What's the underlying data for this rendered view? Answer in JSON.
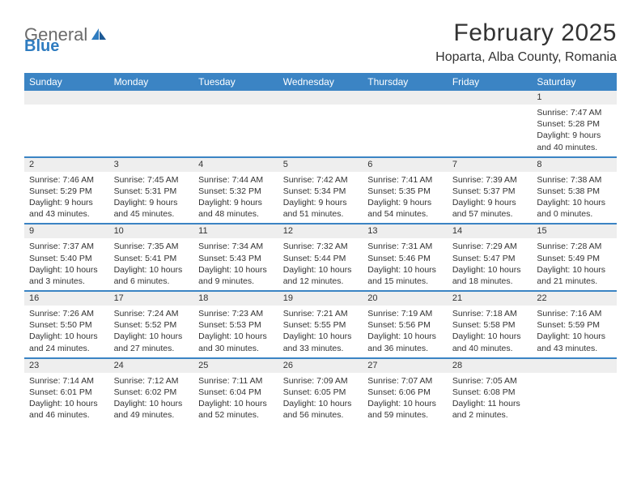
{
  "logo": {
    "text1": "General",
    "text2": "Blue"
  },
  "title": "February 2025",
  "location": "Hoparta, Alba County, Romania",
  "colors": {
    "header_bg": "#3b84c4",
    "header_text": "#ffffff",
    "num_row_bg": "#eeeeee",
    "border": "#3b84c4",
    "logo_gray": "#6b6b6b",
    "logo_blue": "#2f7cc0"
  },
  "day_names": [
    "Sunday",
    "Monday",
    "Tuesday",
    "Wednesday",
    "Thursday",
    "Friday",
    "Saturday"
  ],
  "weeks": [
    [
      {
        "n": "",
        "sr": "",
        "ss": "",
        "dl": ""
      },
      {
        "n": "",
        "sr": "",
        "ss": "",
        "dl": ""
      },
      {
        "n": "",
        "sr": "",
        "ss": "",
        "dl": ""
      },
      {
        "n": "",
        "sr": "",
        "ss": "",
        "dl": ""
      },
      {
        "n": "",
        "sr": "",
        "ss": "",
        "dl": ""
      },
      {
        "n": "",
        "sr": "",
        "ss": "",
        "dl": ""
      },
      {
        "n": "1",
        "sr": "Sunrise: 7:47 AM",
        "ss": "Sunset: 5:28 PM",
        "dl": "Daylight: 9 hours and 40 minutes."
      }
    ],
    [
      {
        "n": "2",
        "sr": "Sunrise: 7:46 AM",
        "ss": "Sunset: 5:29 PM",
        "dl": "Daylight: 9 hours and 43 minutes."
      },
      {
        "n": "3",
        "sr": "Sunrise: 7:45 AM",
        "ss": "Sunset: 5:31 PM",
        "dl": "Daylight: 9 hours and 45 minutes."
      },
      {
        "n": "4",
        "sr": "Sunrise: 7:44 AM",
        "ss": "Sunset: 5:32 PM",
        "dl": "Daylight: 9 hours and 48 minutes."
      },
      {
        "n": "5",
        "sr": "Sunrise: 7:42 AM",
        "ss": "Sunset: 5:34 PM",
        "dl": "Daylight: 9 hours and 51 minutes."
      },
      {
        "n": "6",
        "sr": "Sunrise: 7:41 AM",
        "ss": "Sunset: 5:35 PM",
        "dl": "Daylight: 9 hours and 54 minutes."
      },
      {
        "n": "7",
        "sr": "Sunrise: 7:39 AM",
        "ss": "Sunset: 5:37 PM",
        "dl": "Daylight: 9 hours and 57 minutes."
      },
      {
        "n": "8",
        "sr": "Sunrise: 7:38 AM",
        "ss": "Sunset: 5:38 PM",
        "dl": "Daylight: 10 hours and 0 minutes."
      }
    ],
    [
      {
        "n": "9",
        "sr": "Sunrise: 7:37 AM",
        "ss": "Sunset: 5:40 PM",
        "dl": "Daylight: 10 hours and 3 minutes."
      },
      {
        "n": "10",
        "sr": "Sunrise: 7:35 AM",
        "ss": "Sunset: 5:41 PM",
        "dl": "Daylight: 10 hours and 6 minutes."
      },
      {
        "n": "11",
        "sr": "Sunrise: 7:34 AM",
        "ss": "Sunset: 5:43 PM",
        "dl": "Daylight: 10 hours and 9 minutes."
      },
      {
        "n": "12",
        "sr": "Sunrise: 7:32 AM",
        "ss": "Sunset: 5:44 PM",
        "dl": "Daylight: 10 hours and 12 minutes."
      },
      {
        "n": "13",
        "sr": "Sunrise: 7:31 AM",
        "ss": "Sunset: 5:46 PM",
        "dl": "Daylight: 10 hours and 15 minutes."
      },
      {
        "n": "14",
        "sr": "Sunrise: 7:29 AM",
        "ss": "Sunset: 5:47 PM",
        "dl": "Daylight: 10 hours and 18 minutes."
      },
      {
        "n": "15",
        "sr": "Sunrise: 7:28 AM",
        "ss": "Sunset: 5:49 PM",
        "dl": "Daylight: 10 hours and 21 minutes."
      }
    ],
    [
      {
        "n": "16",
        "sr": "Sunrise: 7:26 AM",
        "ss": "Sunset: 5:50 PM",
        "dl": "Daylight: 10 hours and 24 minutes."
      },
      {
        "n": "17",
        "sr": "Sunrise: 7:24 AM",
        "ss": "Sunset: 5:52 PM",
        "dl": "Daylight: 10 hours and 27 minutes."
      },
      {
        "n": "18",
        "sr": "Sunrise: 7:23 AM",
        "ss": "Sunset: 5:53 PM",
        "dl": "Daylight: 10 hours and 30 minutes."
      },
      {
        "n": "19",
        "sr": "Sunrise: 7:21 AM",
        "ss": "Sunset: 5:55 PM",
        "dl": "Daylight: 10 hours and 33 minutes."
      },
      {
        "n": "20",
        "sr": "Sunrise: 7:19 AM",
        "ss": "Sunset: 5:56 PM",
        "dl": "Daylight: 10 hours and 36 minutes."
      },
      {
        "n": "21",
        "sr": "Sunrise: 7:18 AM",
        "ss": "Sunset: 5:58 PM",
        "dl": "Daylight: 10 hours and 40 minutes."
      },
      {
        "n": "22",
        "sr": "Sunrise: 7:16 AM",
        "ss": "Sunset: 5:59 PM",
        "dl": "Daylight: 10 hours and 43 minutes."
      }
    ],
    [
      {
        "n": "23",
        "sr": "Sunrise: 7:14 AM",
        "ss": "Sunset: 6:01 PM",
        "dl": "Daylight: 10 hours and 46 minutes."
      },
      {
        "n": "24",
        "sr": "Sunrise: 7:12 AM",
        "ss": "Sunset: 6:02 PM",
        "dl": "Daylight: 10 hours and 49 minutes."
      },
      {
        "n": "25",
        "sr": "Sunrise: 7:11 AM",
        "ss": "Sunset: 6:04 PM",
        "dl": "Daylight: 10 hours and 52 minutes."
      },
      {
        "n": "26",
        "sr": "Sunrise: 7:09 AM",
        "ss": "Sunset: 6:05 PM",
        "dl": "Daylight: 10 hours and 56 minutes."
      },
      {
        "n": "27",
        "sr": "Sunrise: 7:07 AM",
        "ss": "Sunset: 6:06 PM",
        "dl": "Daylight: 10 hours and 59 minutes."
      },
      {
        "n": "28",
        "sr": "Sunrise: 7:05 AM",
        "ss": "Sunset: 6:08 PM",
        "dl": "Daylight: 11 hours and 2 minutes."
      },
      {
        "n": "",
        "sr": "",
        "ss": "",
        "dl": ""
      }
    ]
  ]
}
